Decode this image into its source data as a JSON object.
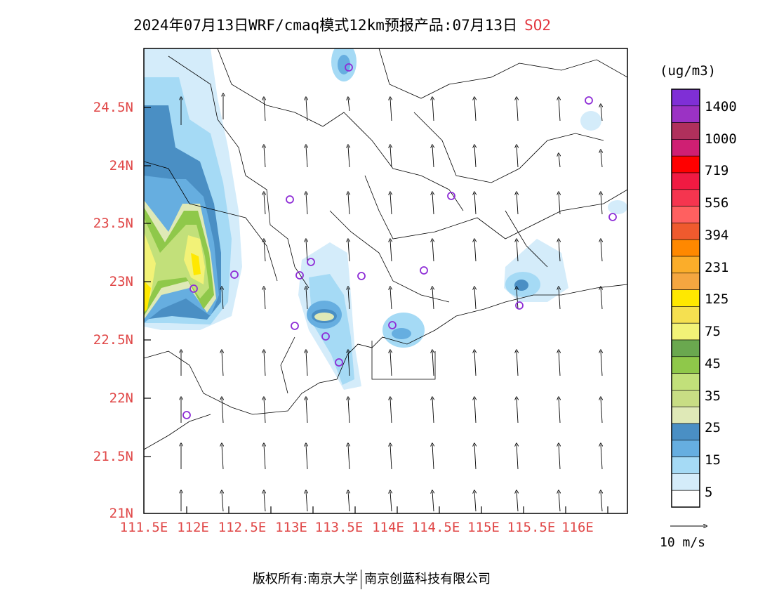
{
  "title": {
    "text": "2024年07月13日WRF/cmaq模式12km预报产品:07月13日",
    "pollutant": "SO2"
  },
  "axes": {
    "lat_ticks": [
      "24.5N",
      "24N",
      "23.5N",
      "23N",
      "22.5N",
      "22N",
      "21.5N",
      "21N"
    ],
    "lon_ticks": [
      "111.5E",
      "112E",
      "112.5E",
      "113E",
      "113.5E",
      "114E",
      "114.5E",
      "115E",
      "115.5E",
      "116E"
    ]
  },
  "legend": {
    "unit": "(ug/m3)",
    "labels": [
      "1400",
      "1000",
      "719",
      "556",
      "394",
      "231",
      "125",
      "75",
      "45",
      "35",
      "25",
      "15",
      "5"
    ],
    "colors": [
      "#7f2fd6",
      "#9b32c4",
      "#b0305c",
      "#cf1f73",
      "#ff0000",
      "#f01a42",
      "#f5354f",
      "#ff6060",
      "#ef5a2e",
      "#ff8800",
      "#fbad2a",
      "#f5a640",
      "#ffe800",
      "#f5e050",
      "#f2f277",
      "#6aa84f",
      "#8fc84a",
      "#c2e07a",
      "#c8dd84",
      "#dfe9b7",
      "#4a8fc4",
      "#66aee0",
      "#a5daf5",
      "#d4ecfa",
      "#ffffff"
    ],
    "wind_reference": "10 m/s"
  },
  "footer": {
    "left": "版权所有:南京大学",
    "right": "南京创蓝科技有限公司"
  },
  "colors": {
    "axis_label": "#e04747",
    "station_marker": "#8e2dd6",
    "pollutant": "#e2363f"
  }
}
